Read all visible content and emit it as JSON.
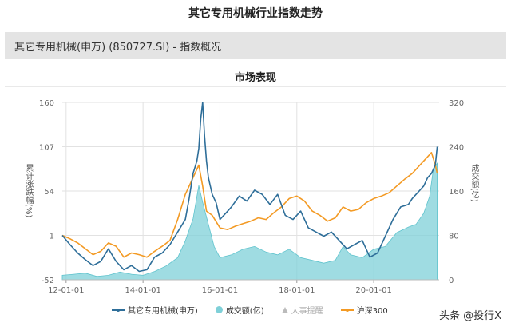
{
  "page": {
    "title": "其它专用机械行业指数走势",
    "index_name": "其它专用机械(申万) (850727.SI) - 指数概况",
    "chart_heading": "市场表现",
    "watermark": "头条 @投行X"
  },
  "colors": {
    "index_line": "#2e6e99",
    "volume_area": "#7fd0d8",
    "hs300_line": "#f39a24",
    "grid": "#e2e2e2",
    "axis_text": "#666666"
  },
  "chart_data": {
    "type": "line",
    "title": "市场表现",
    "ylabel_left": "累计涨跌幅(%)",
    "ylabel_right": "成交额(亿)",
    "y_left_ticks": [
      "160",
      "107",
      "54",
      "1",
      "-52"
    ],
    "y_left_range": [
      -52,
      160
    ],
    "y_right_ticks": [
      "320",
      "240",
      "160",
      "80",
      "0"
    ],
    "y_right_range": [
      0,
      320
    ],
    "x_tick_labels": [
      "12-01-01",
      "14-01-01",
      "16-01-01",
      "18-01-01",
      "20-01-01"
    ],
    "x_tick_years": [
      2012,
      2014,
      2016,
      2018,
      2020
    ],
    "x_range": [
      2011.9,
      2021.7
    ],
    "grid": true,
    "legend_position": "bottom",
    "legend": [
      {
        "label": "其它专用机械(申万)",
        "kind": "line",
        "color": "#2e6e99"
      },
      {
        "label": "成交额(亿)",
        "kind": "area",
        "color": "#7fd0d8"
      },
      {
        "label": "大事提醒",
        "kind": "marker",
        "color": "#bbbbbb"
      },
      {
        "label": "沪深300",
        "kind": "line",
        "color": "#f39a24"
      }
    ],
    "series": [
      {
        "name": "其它专用机械(申万)",
        "axis": "left",
        "x": [
          2011.9,
          2012.1,
          2012.3,
          2012.5,
          2012.7,
          2012.9,
          2013.1,
          2013.3,
          2013.5,
          2013.7,
          2013.9,
          2014.1,
          2014.3,
          2014.5,
          2014.7,
          2014.9,
          2015.1,
          2015.2,
          2015.3,
          2015.4,
          2015.45,
          2015.5,
          2015.55,
          2015.6,
          2015.65,
          2015.7,
          2015.8,
          2015.9,
          2016.0,
          2016.1,
          2016.3,
          2016.5,
          2016.7,
          2016.9,
          2017.1,
          2017.3,
          2017.5,
          2017.7,
          2017.9,
          2018.1,
          2018.3,
          2018.5,
          2018.7,
          2018.9,
          2019.1,
          2019.3,
          2019.5,
          2019.7,
          2019.9,
          2020.1,
          2020.3,
          2020.5,
          2020.7,
          2020.9,
          2021.0,
          2021.1,
          2021.2,
          2021.3,
          2021.4,
          2021.5,
          2021.6,
          2021.65
        ],
        "values": [
          1,
          -10,
          -20,
          -28,
          -35,
          -30,
          -15,
          -30,
          -40,
          -35,
          -42,
          -40,
          -25,
          -20,
          -10,
          5,
          20,
          45,
          75,
          90,
          105,
          140,
          160,
          120,
          90,
          70,
          50,
          40,
          20,
          25,
          35,
          48,
          42,
          55,
          50,
          38,
          50,
          25,
          20,
          30,
          10,
          5,
          0,
          5,
          -5,
          -15,
          -10,
          -5,
          -25,
          -20,
          0,
          20,
          35,
          38,
          45,
          50,
          55,
          60,
          70,
          75,
          85,
          107
        ]
      },
      {
        "name": "沪深300",
        "axis": "left",
        "x": [
          2011.9,
          2012.1,
          2012.3,
          2012.5,
          2012.7,
          2012.9,
          2013.1,
          2013.3,
          2013.5,
          2013.7,
          2013.9,
          2014.1,
          2014.3,
          2014.5,
          2014.7,
          2014.9,
          2015.1,
          2015.3,
          2015.45,
          2015.55,
          2015.65,
          2015.8,
          2016.0,
          2016.2,
          2016.4,
          2016.6,
          2016.8,
          2017.0,
          2017.2,
          2017.4,
          2017.6,
          2017.8,
          2018.0,
          2018.2,
          2018.4,
          2018.6,
          2018.8,
          2019.0,
          2019.2,
          2019.4,
          2019.6,
          2019.8,
          2020.0,
          2020.2,
          2020.4,
          2020.6,
          2020.8,
          2021.0,
          2021.1,
          2021.2,
          2021.3,
          2021.4,
          2021.5,
          2021.6,
          2021.65
        ],
        "values": [
          1,
          -3,
          -8,
          -15,
          -22,
          -18,
          -8,
          -12,
          -25,
          -20,
          -22,
          -25,
          -18,
          -12,
          -5,
          20,
          50,
          70,
          85,
          60,
          30,
          25,
          10,
          8,
          12,
          15,
          18,
          22,
          20,
          28,
          35,
          45,
          48,
          42,
          30,
          25,
          18,
          22,
          35,
          30,
          32,
          40,
          45,
          48,
          52,
          60,
          68,
          75,
          80,
          85,
          90,
          95,
          100,
          85,
          75
        ]
      },
      {
        "name": "成交额(亿)",
        "axis": "right",
        "x": [
          2011.9,
          2012.2,
          2012.5,
          2012.8,
          2013.1,
          2013.4,
          2013.7,
          2014.0,
          2014.3,
          2014.6,
          2014.9,
          2015.1,
          2015.3,
          2015.45,
          2015.55,
          2015.7,
          2015.85,
          2016.0,
          2016.3,
          2016.6,
          2016.9,
          2017.2,
          2017.5,
          2017.8,
          2018.1,
          2018.4,
          2018.7,
          2019.0,
          2019.2,
          2019.4,
          2019.7,
          2020.0,
          2020.3,
          2020.6,
          2020.9,
          2021.1,
          2021.3,
          2021.45,
          2021.55,
          2021.65
        ],
        "values": [
          8,
          10,
          12,
          6,
          8,
          14,
          10,
          8,
          15,
          25,
          40,
          70,
          110,
          170,
          140,
          100,
          60,
          40,
          45,
          55,
          60,
          50,
          45,
          55,
          40,
          35,
          30,
          35,
          60,
          45,
          40,
          55,
          60,
          85,
          95,
          100,
          120,
          150,
          200,
          210
        ]
      }
    ]
  }
}
